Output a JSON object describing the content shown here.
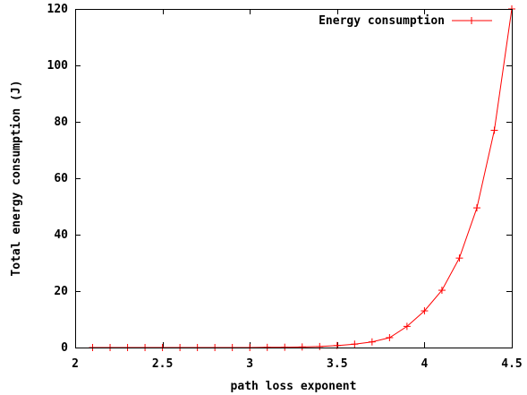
{
  "chart_data": {
    "type": "line",
    "xlabel": "path loss exponent",
    "ylabel": "Total energy consumption (J)",
    "xlim": [
      2,
      4.5
    ],
    "ylim": [
      0,
      120
    ],
    "xticks": [
      2,
      2.5,
      3,
      3.5,
      4,
      4.5
    ],
    "xtick_labels": [
      "2",
      "2.5",
      "3",
      "3.5",
      "4",
      "4.5"
    ],
    "yticks": [
      0,
      20,
      40,
      60,
      80,
      100,
      120
    ],
    "ytick_labels": [
      "0",
      "20",
      "40",
      "60",
      "80",
      "100",
      "120"
    ],
    "grid": false,
    "legend_position": "top-right",
    "series": [
      {
        "name": "Energy consumption",
        "color": "#ff0000",
        "marker": "plus",
        "x": [
          2.1,
          2.2,
          2.3,
          2.4,
          2.5,
          2.6,
          2.7,
          2.8,
          2.9,
          3.0,
          3.1,
          3.2,
          3.3,
          3.4,
          3.5,
          3.6,
          3.7,
          3.8,
          3.9,
          4.0,
          4.1,
          4.2,
          4.3,
          4.4,
          4.5
        ],
        "y": [
          0.0,
          0.0,
          0.0,
          0.0,
          0.0,
          0.0,
          0.0,
          0.0,
          0.0,
          0.0,
          0.05,
          0.1,
          0.2,
          0.35,
          0.7,
          1.2,
          2.0,
          3.5,
          7.5,
          13.0,
          20.3,
          31.7,
          49.5,
          77.0,
          120.0
        ]
      }
    ]
  }
}
